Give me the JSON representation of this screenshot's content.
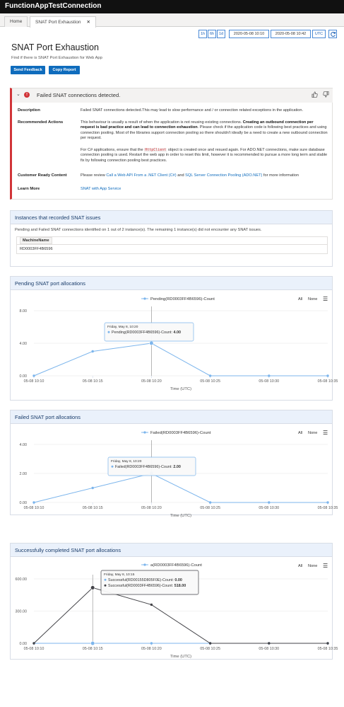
{
  "app": {
    "title": "FunctionAppTestConnection"
  },
  "tabs": [
    {
      "label": "Home"
    },
    {
      "label": "SNAT Port Exhaustion",
      "close": "✕"
    }
  ],
  "timebar": {
    "ranges": [
      "1h",
      "6h",
      "1d"
    ],
    "start": "2020-05-08 10:10",
    "end": "2020-05-08 10:42",
    "tz": "UTC",
    "refresh_icon": "refresh-icon"
  },
  "page": {
    "title": "SNAT Port Exhaustion",
    "subtitle": "Find if there is SNAT Port Exhaustion for Web App",
    "send_feedback": "Send Feedback",
    "copy_report": "Copy Report"
  },
  "alert": {
    "message": "Failed SNAT connections detected.",
    "status_color": "#d13438",
    "description_label": "Description",
    "description": "Failed SNAT connections detected.This may lead to slow performance and / or connection related exceptions in the application.",
    "rec_label": "Recommended Actions",
    "rec_p1_a": "This behaviour is usually a result of when the application is not reusing existing connections. ",
    "rec_p1_b": "Creating an outbound connection per request is bad practice and can lead to connection exhaustion",
    "rec_p1_c": ". Please check if the application code is following best practices and using connection pooling. Most of the libraries support connection pooling so there shouldn't ideally be a need to create a new outbound connection per request.",
    "rec_p2_a": "For C# applications, ensure that the ",
    "rec_p2_code": "HttpClient",
    "rec_p2_b": " object is created once and resued again. For ADO.NET connections, make sure database connection pooling is used. Restart the web app in order to reset this limit, however it is recommended to pursue a more long term and stable fix by following connection pooling best practices.",
    "crc_label": "Customer Ready Content",
    "crc_a": "Please review ",
    "crc_link1": "Call a Web API From a .NET Client (C#)",
    "crc_and": " and ",
    "crc_link2": "SQL Server Connection Pooling (ADO.NET)",
    "crc_b": " for more information",
    "learn_label": "Learn More",
    "learn_link": "SNAT with App Service"
  },
  "instances": {
    "title": "Instances that recorded SNAT issues",
    "note": "Pending and Failed SNAT connections identified on 1 out of 2 instance(s). The remaining 1 instance(s) did not encounter any SNAT issues.",
    "column": "MachineName",
    "rows": [
      "RD0003FF4B6596"
    ]
  },
  "chart_controls": {
    "all": "All",
    "none": "None",
    "menu_icon": "hamburger-menu-icon"
  },
  "chart_data": [
    {
      "type": "line",
      "title": "Pending SNAT port allocations",
      "x": [
        "05-08 10:10",
        "05-08 10:15",
        "05-08 10:20",
        "05-08 10:25",
        "05-08 10:30",
        "05-08 10:35"
      ],
      "xlabel": "Time (UTC)",
      "ylim": [
        0,
        8
      ],
      "yticks": [
        "0.00",
        "4.00",
        "8.00"
      ],
      "series": [
        {
          "name": "Pending(RD0003FF4B6596)-Count",
          "color": "#7cb5ec",
          "values": [
            0,
            3,
            4,
            0,
            0,
            0
          ]
        }
      ],
      "tooltip": {
        "header": "Friday, May 8, 10:20",
        "lines": [
          {
            "label": "Pending(RD0003FF4B6596)-Count: ",
            "value": "4.00"
          }
        ]
      },
      "grid": true,
      "legend": "top-center"
    },
    {
      "type": "line",
      "title": "Failed SNAT port allocations",
      "x": [
        "05-08 10:10",
        "05-08 10:15",
        "05-08 10:20",
        "05-08 10:25",
        "05-08 10:30",
        "05-08 10:35"
      ],
      "xlabel": "Time (UTC)",
      "ylim": [
        0,
        4
      ],
      "yticks": [
        "0.00",
        "2.00",
        "4.00"
      ],
      "series": [
        {
          "name": "Failed(RD0003FF4B6596)-Count",
          "color": "#7cb5ec",
          "values": [
            0,
            1,
            2,
            0,
            0,
            0
          ]
        }
      ],
      "tooltip": {
        "header": "Friday, May 8, 10:20",
        "lines": [
          {
            "label": "Failed(RD0003FF4B6596)-Count: ",
            "value": "2.00"
          }
        ]
      },
      "grid": true,
      "legend": "top-center"
    },
    {
      "type": "line",
      "title": "Successfully completed SNAT port allocations",
      "x": [
        "05-08 10:10",
        "05-08 10:15",
        "05-08 10:20",
        "05-08 10:25",
        "05-08 10:30",
        "05-08 10:35"
      ],
      "xlabel": "Time (UTC)",
      "ylim": [
        0,
        600
      ],
      "yticks": [
        "0.00",
        "300.00",
        "600.00"
      ],
      "series": [
        {
          "name": "Successful(RD00155D805F0E)-Count",
          "color": "#7cb5ec",
          "values": [
            0,
            0,
            0,
            0,
            0,
            0
          ]
        },
        {
          "name": "Successful(RD0003FF4B6596)-Count",
          "color": "#434348",
          "values": [
            0,
            518,
            360,
            0,
            0,
            0
          ]
        }
      ],
      "legend_visible": "a(RD0003FF4B6596)-Count",
      "tooltip": {
        "header": "Friday, May 8, 10:15",
        "lines": [
          {
            "label": "Successful(RD00155D805F0E)-Count: ",
            "value": "0.00"
          },
          {
            "label": "Successful(RD0003FF4B6596)-Count: ",
            "value": "518.00"
          }
        ]
      },
      "grid": true,
      "legend": "top-center"
    }
  ]
}
